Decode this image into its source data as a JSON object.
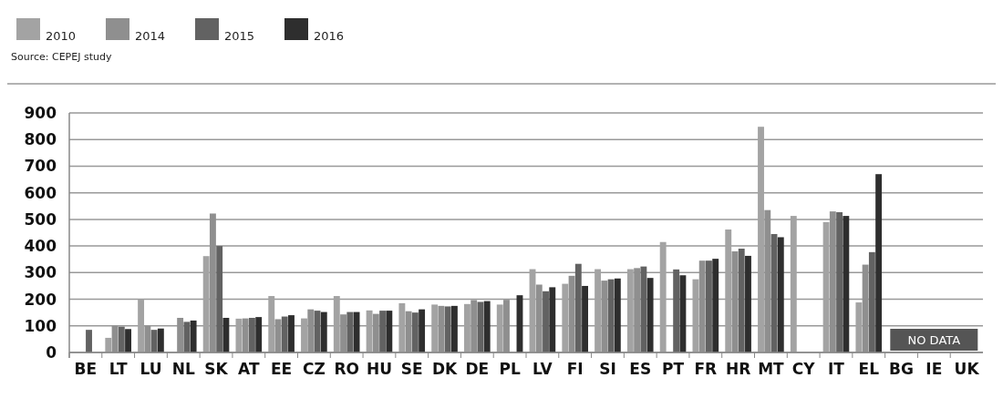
{
  "chart_data": {
    "type": "bar",
    "categories": [
      "BE",
      "LT",
      "LU",
      "NL",
      "SK",
      "AT",
      "EE",
      "CZ",
      "RO",
      "HU",
      "SE",
      "DK",
      "DE",
      "PL",
      "LV",
      "FI",
      "SI",
      "ES",
      "PT",
      "FR",
      "HR",
      "MT",
      "CY",
      "IT",
      "EL",
      "BG",
      "IE",
      "UK"
    ],
    "series": [
      {
        "name": "2010",
        "color": "#a3a3a3",
        "values": [
          null,
          55,
          200,
          null,
          362,
          127,
          212,
          128,
          212,
          158,
          185,
          180,
          182,
          180,
          313,
          258,
          313,
          313,
          415,
          275,
          462,
          848,
          513,
          490,
          188,
          null,
          null,
          null
        ]
      },
      {
        "name": "2014",
        "color": "#8f8f8f",
        "values": [
          null,
          100,
          100,
          130,
          522,
          128,
          125,
          162,
          143,
          145,
          155,
          175,
          197,
          198,
          255,
          288,
          270,
          317,
          null,
          345,
          380,
          535,
          null,
          530,
          330,
          null,
          null,
          null
        ]
      },
      {
        "name": "2015",
        "color": "#626262",
        "values": [
          85,
          97,
          85,
          115,
          400,
          130,
          135,
          157,
          152,
          157,
          150,
          173,
          190,
          null,
          230,
          333,
          275,
          323,
          312,
          345,
          390,
          445,
          null,
          527,
          377,
          null,
          null,
          null
        ]
      },
      {
        "name": "2016",
        "color": "#2e2e2e",
        "values": [
          null,
          88,
          90,
          120,
          130,
          133,
          140,
          152,
          152,
          157,
          162,
          175,
          193,
          215,
          245,
          250,
          278,
          280,
          290,
          352,
          363,
          433,
          null,
          513,
          670,
          null,
          null,
          null
        ]
      }
    ],
    "ylim": [
      0,
      900
    ],
    "yticks": [
      0,
      100,
      200,
      300,
      400,
      500,
      600,
      700,
      800,
      900
    ],
    "grid": "y",
    "legend": "top left",
    "annotations": [
      "Source: CEPEJ study",
      "NO DATA"
    ]
  }
}
